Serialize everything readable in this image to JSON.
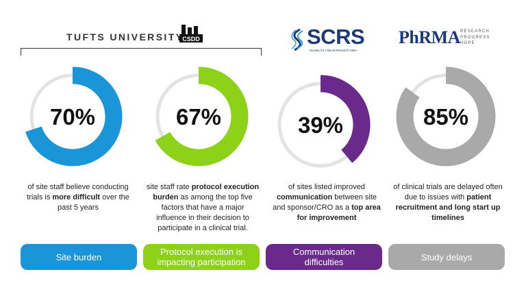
{
  "logos": {
    "tufts": "TUFTS UNIVERSITY",
    "csdd": "CSDD",
    "scrs": "SCRS",
    "scrs_sub": "Society for Clinical Research Sites",
    "phrma": "PhRMA",
    "phrma_tag": [
      "RESEARCH",
      "PROGRESS",
      "HOPE"
    ]
  },
  "chart_data": {
    "type": "pie",
    "title": "",
    "categories": [
      "Site burden",
      "Protocol execution is impacting participation",
      "Communication difficulties",
      "Study delays"
    ],
    "values": [
      70,
      67,
      39,
      85
    ],
    "value_labels": [
      "70%",
      "67%",
      "39%",
      "85%"
    ],
    "colors": [
      "#1a96d8",
      "#8ed119",
      "#6a2a8c",
      "#a9a9a9"
    ],
    "track_color": "#e3e3e3",
    "descriptions": [
      [
        {
          "t": "of site staff believe conducting trials is ",
          "b": false
        },
        {
          "t": "more difficult",
          "b": true
        },
        {
          "t": " over the past 5 years",
          "b": false
        }
      ],
      [
        {
          "t": "site staff rate ",
          "b": false
        },
        {
          "t": "protocol execution burden",
          "b": true
        },
        {
          "t": " as among the top five factors that have a major influence in their decision to participate in a clinical trial.",
          "b": false
        }
      ],
      [
        {
          "t": "of sites listed improved ",
          "b": false
        },
        {
          "t": "communication",
          "b": true
        },
        {
          "t": " between site and sponsor/CRO as a ",
          "b": false
        },
        {
          "t": "top area for improvement",
          "b": true
        }
      ],
      [
        {
          "t": "of clinical trials are delayed often due to issues with ",
          "b": false
        },
        {
          "t": "patient recruitment and long start up timelines",
          "b": true
        }
      ]
    ]
  }
}
